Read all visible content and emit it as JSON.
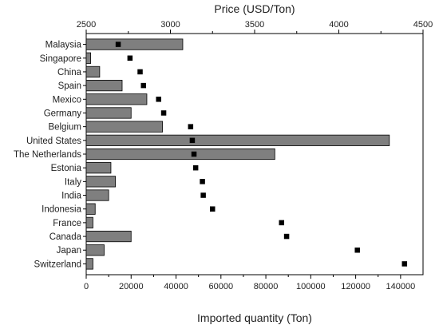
{
  "chart_data": {
    "type": "bar",
    "orientation": "horizontal",
    "categories": [
      "Malaysia",
      "Singapore",
      "China",
      "Spain",
      "Mexico",
      "Germany",
      "Belgium",
      "United States",
      "The Netherlands",
      "Estonia",
      "Italy",
      "India",
      "Indonesia",
      "France",
      "Canada",
      "Japan",
      "Switzerland"
    ],
    "series": [
      {
        "type": "bar",
        "axis": "bottom",
        "color": "#7f7f7f",
        "values": [
          43000,
          2000,
          6000,
          16000,
          27000,
          20000,
          34000,
          135000,
          84000,
          11000,
          13000,
          10000,
          4000,
          3000,
          20000,
          8000,
          3000
        ]
      },
      {
        "type": "scatter",
        "axis": "top",
        "color": "#000000",
        "values": [
          2690,
          2760,
          2820,
          2840,
          2930,
          2960,
          3120,
          3130,
          3140,
          3150,
          3190,
          3195,
          3250,
          3660,
          3690,
          4110,
          4390
        ]
      }
    ],
    "xlabel": "Imported quantity (Ton)",
    "x2label": "Price (USD/Ton)",
    "xlim": [
      0,
      150000
    ],
    "xticks": [
      0,
      20000,
      40000,
      60000,
      80000,
      100000,
      120000,
      140000
    ],
    "x2lim": [
      2500,
      4500
    ],
    "x2ticks": [
      2500,
      3000,
      3500,
      4000,
      4500
    ]
  }
}
